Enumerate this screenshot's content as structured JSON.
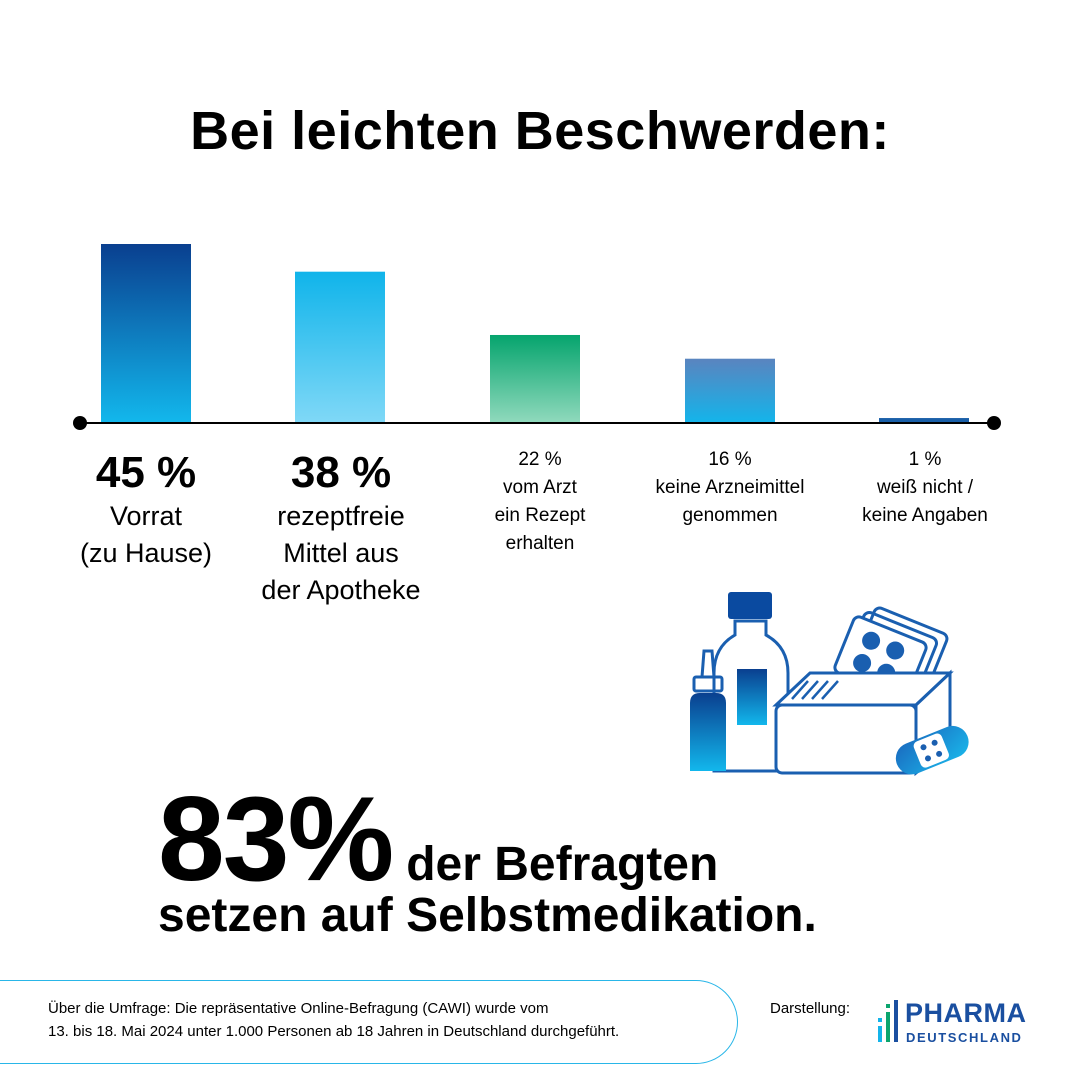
{
  "title": "Bei leichten Beschwerden:",
  "chart_data": {
    "type": "bar",
    "categories": [
      "Vorrat (zu Hause)",
      "rezeptfreie Mittel aus der Apotheke",
      "vom Arzt ein Rezept erhalten",
      "keine Arzneimittel genommen",
      "weiß nicht / keine Angaben"
    ],
    "values": [
      45,
      38,
      22,
      16,
      1
    ],
    "unit": "%",
    "ylim": [
      0,
      45
    ],
    "grid": false,
    "legend": "none",
    "bars": [
      {
        "pct": "45 %",
        "label": "Vorrat",
        "label2": "(zu Hause)",
        "color_top": "#0a3f8f",
        "color_bottom": "#12b7ec"
      },
      {
        "pct": "38 %",
        "label": "rezeptfreie",
        "label2": "Mittel aus",
        "label3": "der Apotheke",
        "color_top": "#10b4ea",
        "color_bottom": "#7fd8f7"
      },
      {
        "pct": "22 %",
        "label": "vom Arzt",
        "label2": "ein Rezept",
        "label3": "erhalten",
        "color_top": "#05a46d",
        "color_bottom": "#8fd9bc"
      },
      {
        "pct": "16 %",
        "label": "keine Arzneimittel",
        "label2": "genommen",
        "color_top": "#5a84bf",
        "color_bottom": "#14b4ea"
      },
      {
        "pct": "1 %",
        "label": "weiß nicht /",
        "label2": "keine Angaben",
        "color_top": "#1a5fa8",
        "color_bottom": "#1a5fa8"
      }
    ]
  },
  "headline": {
    "big": "83%",
    "line1": "der Befragten",
    "line2": "setzen auf Selbstmedikation."
  },
  "footer": {
    "line1": "Über die Umfrage: Die repräsentative Online-Befragung (CAWI) wurde vom",
    "line2": "13. bis 18. Mai 2024 unter 1.000 Personen ab 18 Jahren in Deutschland durchgeführt.",
    "credit_label": "Darstellung:",
    "logo_word": "PHARMA",
    "logo_sub": "DEUTSCHLAND"
  },
  "icons": [
    "medicine-illustration-icon",
    "pharma-logo-icon"
  ],
  "colors": {
    "accent": "#29b6e8",
    "brand": "#1a4fa0"
  }
}
